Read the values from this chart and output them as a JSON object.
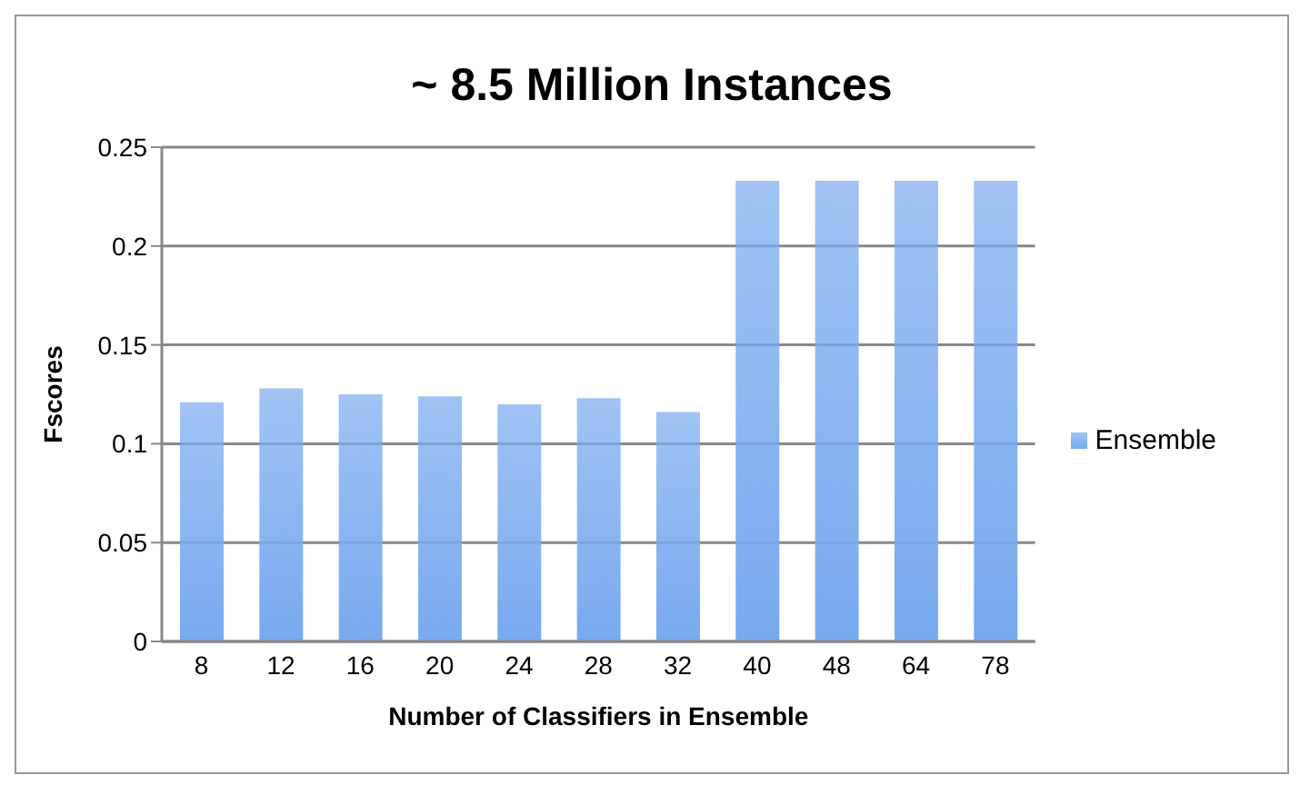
{
  "chart_data": {
    "type": "bar",
    "title": "~ 8.5 Million Instances",
    "xlabel": "Number of Classifiers in Ensemble",
    "ylabel": "Fscores",
    "categories": [
      "8",
      "12",
      "16",
      "20",
      "24",
      "28",
      "32",
      "40",
      "48",
      "64",
      "78"
    ],
    "series": [
      {
        "name": "Ensemble",
        "color": "#78a9ef",
        "values": [
          0.121,
          0.128,
          0.125,
          0.124,
          0.12,
          0.123,
          0.116,
          0.233,
          0.233,
          0.233,
          0.233
        ]
      }
    ],
    "ylim": [
      0,
      0.25
    ],
    "yticks": [
      0,
      0.05,
      0.1,
      0.15,
      0.2,
      0.25
    ],
    "grid": "y",
    "legend": "right"
  }
}
